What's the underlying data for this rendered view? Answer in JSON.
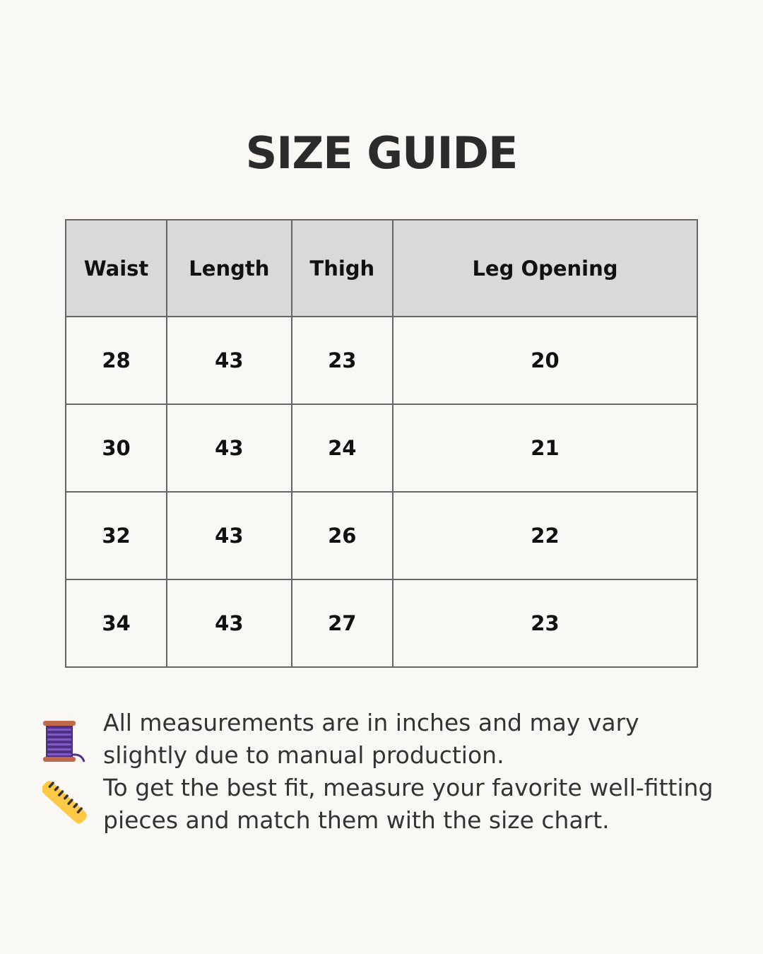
{
  "title": "SIZE GUIDE",
  "table": {
    "headers": [
      "Waist",
      "Length",
      "Thigh",
      "Leg Opening"
    ],
    "rows": [
      [
        "28",
        "43",
        "23",
        "20"
      ],
      [
        "30",
        "43",
        "24",
        "21"
      ],
      [
        "32",
        "43",
        "26",
        "22"
      ],
      [
        "34",
        "43",
        "27",
        "23"
      ]
    ]
  },
  "notes": {
    "line1": "All measurements are in inches and may vary slightly due to manual production.",
    "line2": "To get the best fit, measure your favorite well-fitting pieces and match them with the size chart."
  },
  "icons": {
    "note1": "thread-spool-icon",
    "note2": "ruler-icon"
  },
  "colors": {
    "background": "#f9f8f4",
    "header": "#d9d9d9",
    "border": "#666666",
    "spool": "#5b3a9a",
    "ruler": "#ffc845"
  }
}
